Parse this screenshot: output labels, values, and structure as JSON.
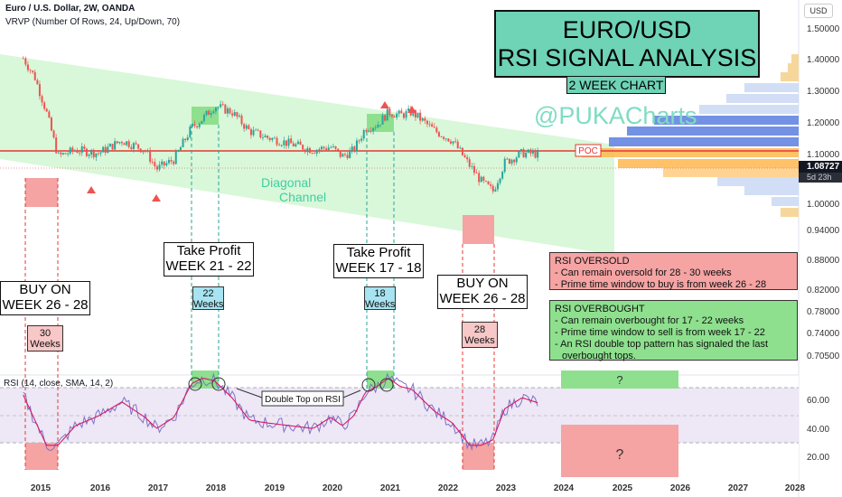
{
  "header": {
    "symbol": "Euro / U.S. Dollar, 2W, OANDA",
    "indicator": "VRVP (Number Of Rows, 24, Up/Down, 70)",
    "rsi_label": "RSI (14, close, SMA, 14, 2)"
  },
  "title": {
    "line1": "EURO/USD",
    "line2": "RSI SIGNAL ANALYSIS",
    "subtitle": "2 WEEK CHART",
    "watermark": "@PUKACharts"
  },
  "axis": {
    "currency": "USD",
    "price_ticks": [
      "1.50000",
      "1.40000",
      "1.30000",
      "1.20000",
      "1.10000",
      "1.00000",
      "0.94000",
      "0.88000",
      "0.82000",
      "0.78000",
      "0.74000",
      "0.70500"
    ],
    "rsi_ticks": [
      "60.00",
      "40.00",
      "20.00"
    ],
    "years": [
      "2015",
      "2016",
      "2017",
      "2018",
      "2019",
      "2020",
      "2021",
      "2022",
      "2023",
      "2024",
      "2025",
      "2026",
      "2027",
      "2028"
    ],
    "current_price": "1.08727",
    "countdown": "5d 23h"
  },
  "annotations": {
    "poc": "POC",
    "channel_line1": "Diagonal",
    "channel_line2": "Channel",
    "double_top": "Double Top on RSI",
    "question": "?",
    "buy1": {
      "line1": "BUY ON",
      "line2": "WEEK 26 - 28",
      "weeks": "30",
      "weeks_unit": "Weeks"
    },
    "tp1": {
      "line1": "Take Profit",
      "line2": "WEEK 21 - 22",
      "weeks": "22",
      "weeks_unit": "Weeks"
    },
    "tp2": {
      "line1": "Take Profit",
      "line2": "WEEK 17 - 18",
      "weeks": "18",
      "weeks_unit": "Weeks"
    },
    "buy2": {
      "line1": "BUY ON",
      "line2": "WEEK 26 - 28",
      "weeks": "28",
      "weeks_unit": "Weeks"
    }
  },
  "notes": {
    "oversold": {
      "title": "RSI OVERSOLD",
      "lines": [
        "- Can remain oversold for 28 - 30 weeks",
        "- Prime time window to buy is from week 26 - 28"
      ]
    },
    "overbought": {
      "title": "RSI OVERBOUGHT",
      "lines": [
        "- Can remain overbought for 17 - 22 weeks",
        "- Prime time window to sell is from week 17 - 22",
        "- An RSI double top pattern has signaled the last",
        "  overbought tops."
      ]
    }
  },
  "colors": {
    "bull": "#26a69a",
    "bear": "#ef5350",
    "channel": "#d9f7d9",
    "rsi_band": "#ede7f6",
    "rsi_line": "#7e72c9",
    "rsi_ma": "#d81b60",
    "oversold_box": "#f5a3a3",
    "overbought_box": "#8ee08e",
    "title_bg": "#6fd3b6",
    "weeks_blue": "#a7e3f0",
    "weeks_red": "#f8c7c7"
  },
  "chart_data": {
    "type": "line",
    "title": "EURO/USD RSI SIGNAL ANALYSIS",
    "x": [
      "2014.7",
      "2014.9",
      "2015.1",
      "2015.3",
      "2015.6",
      "2016.0",
      "2016.4",
      "2016.8",
      "2017.0",
      "2017.3",
      "2017.6",
      "2017.8",
      "2018.0",
      "2018.3",
      "2018.6",
      "2018.9",
      "2019.3",
      "2019.7",
      "2020.0",
      "2020.2",
      "2020.4",
      "2020.6",
      "2020.8",
      "2021.0",
      "2021.2",
      "2021.4",
      "2021.8",
      "2022.1",
      "2022.4",
      "2022.6",
      "2022.8",
      "2023.0",
      "2023.3",
      "2023.6"
    ],
    "series": [
      {
        "name": "EUR/USD",
        "values": [
          1.39,
          1.33,
          1.22,
          1.08,
          1.1,
          1.09,
          1.13,
          1.1,
          1.04,
          1.07,
          1.17,
          1.2,
          1.24,
          1.22,
          1.16,
          1.14,
          1.12,
          1.1,
          1.11,
          1.08,
          1.1,
          1.17,
          1.18,
          1.22,
          1.21,
          1.22,
          1.16,
          1.13,
          1.05,
          1.0,
          0.97,
          1.06,
          1.09,
          1.087
        ]
      },
      {
        "name": "RSI",
        "values": [
          60,
          42,
          24,
          24,
          38,
          45,
          55,
          44,
          36,
          44,
          68,
          72,
          70,
          58,
          42,
          40,
          38,
          36,
          44,
          38,
          45,
          62,
          66,
          72,
          66,
          64,
          48,
          40,
          24,
          24,
          28,
          50,
          58,
          54
        ]
      }
    ],
    "ylim": [
      0.7,
      1.5
    ],
    "rsi_ylim": [
      0,
      100
    ]
  }
}
